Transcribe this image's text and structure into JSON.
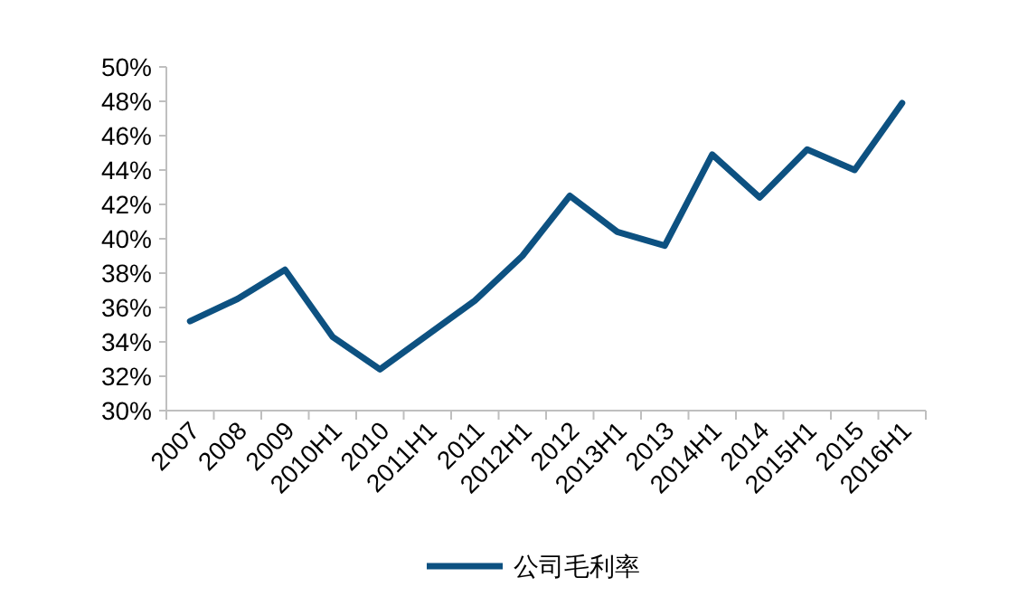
{
  "chart_data": {
    "type": "line",
    "categories": [
      "2007",
      "2008",
      "2009",
      "2010H1",
      "2010",
      "2011H1",
      "2011",
      "2012H1",
      "2012",
      "2013H1",
      "2013",
      "2014H1",
      "2014",
      "2015H1",
      "2015",
      "2016H1"
    ],
    "series": [
      {
        "name": "公司毛利率",
        "color": "#0d5181",
        "values": [
          35.2,
          36.5,
          38.2,
          34.3,
          32.4,
          34.4,
          36.4,
          39.0,
          42.5,
          40.4,
          39.6,
          44.9,
          42.4,
          45.2,
          44.0,
          47.9
        ]
      }
    ],
    "ylim": [
      30,
      50
    ],
    "yticks": [
      {
        "value": 30,
        "label": "30%"
      },
      {
        "value": 32,
        "label": "32%"
      },
      {
        "value": 34,
        "label": "34%"
      },
      {
        "value": 36,
        "label": "36%"
      },
      {
        "value": 38,
        "label": "38%"
      },
      {
        "value": 40,
        "label": "40%"
      },
      {
        "value": 42,
        "label": "42%"
      },
      {
        "value": 44,
        "label": "44%"
      },
      {
        "value": 46,
        "label": "46%"
      },
      {
        "value": 48,
        "label": "48%"
      },
      {
        "value": 50,
        "label": "50%"
      }
    ],
    "legend": "bottom",
    "grid": false,
    "marker": "none",
    "line_style": "solid"
  }
}
